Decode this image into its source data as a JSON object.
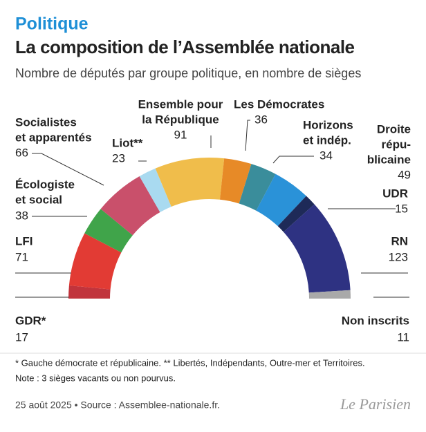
{
  "chart_data": {
    "type": "parliament",
    "kicker": "Politique",
    "title": "La composition de l’Assemblée nationale",
    "subtitle": "Nombre de députés par groupe politique, en nombre de sièges",
    "series": [
      {
        "name": [
          "GDR*"
        ],
        "value": 17,
        "color": "#c1343c"
      },
      {
        "name": [
          "LFI"
        ],
        "value": 71,
        "color": "#e23b34"
      },
      {
        "name": [
          "Écologiste",
          "et social"
        ],
        "value": 38,
        "color": "#40a44a"
      },
      {
        "name": [
          "Socialistes",
          "et apparentés"
        ],
        "value": 66,
        "color": "#c9506b"
      },
      {
        "name": [
          "Liot**"
        ],
        "value": 23,
        "color": "#a9daf0"
      },
      {
        "name": [
          "Ensemble pour",
          "la République"
        ],
        "value": 91,
        "color": "#f0bd4b"
      },
      {
        "name": [
          "Les Démocrates"
        ],
        "value": 36,
        "color": "#e78a27"
      },
      {
        "name": [
          "Horizons",
          "et indép."
        ],
        "value": 34,
        "color": "#3a8d9b"
      },
      {
        "name": [
          "Droite",
          "répu-",
          "blicaine"
        ],
        "value": 49,
        "color": "#2a92d8"
      },
      {
        "name": [
          "UDR"
        ],
        "value": 15,
        "color": "#1e2a58"
      },
      {
        "name": [
          "RN"
        ],
        "value": 123,
        "color": "#2e3282"
      },
      {
        "name": [
          "Non inscrits"
        ],
        "value": 11,
        "color": "#a9a9a9"
      }
    ],
    "footnotes": [
      "* Gauche démocrate et républicaine.  ** Libertés, Indépendants, Outre-mer et Territoires.",
      "Note : 3 sièges vacants ou non pourvus."
    ],
    "source": "25 août 2025 • Source : Assemblee-nationale.fr.",
    "logo": "Le Parisien"
  }
}
